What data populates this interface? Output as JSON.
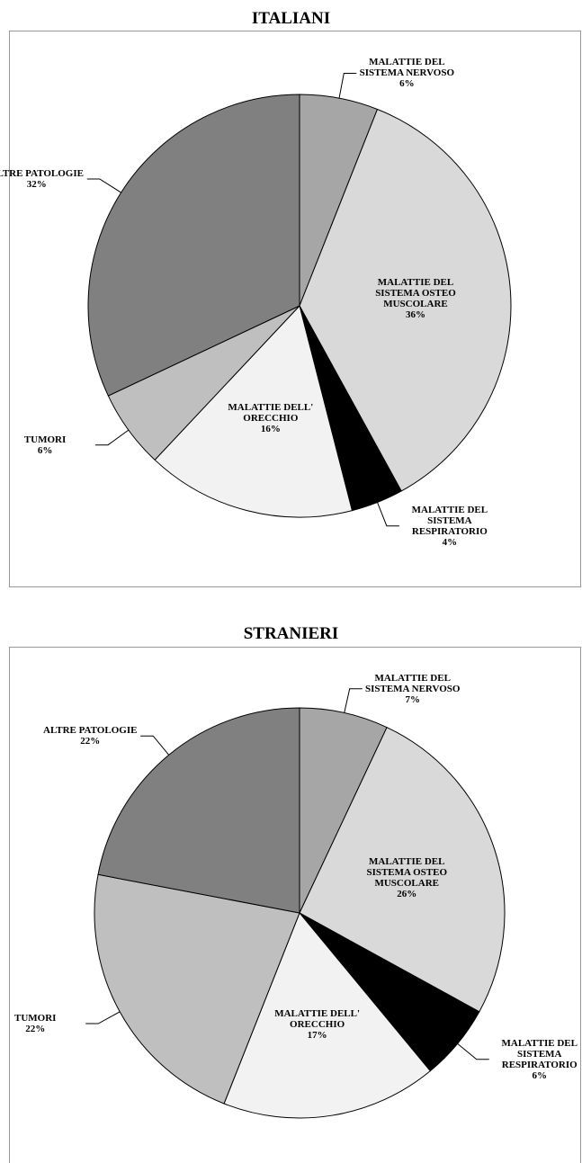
{
  "chart_data": [
    {
      "type": "pie",
      "title": "ITALIANI",
      "categories": [
        "MALATTIE DEL SISTEMA NERVOSO",
        "MALATTIE DEL SISTEMA OSTEO MUSCOLARE",
        "MALATTIE DEL SISTEMA RESPIRATORIO",
        "MALATTIE DELL' ORECCHIO",
        "TUMORI",
        "ALTRE PATOLOGIE"
      ],
      "values": [
        6,
        36,
        4,
        16,
        6,
        32
      ],
      "value_labels": [
        "6%",
        "36%",
        "4%",
        "16%",
        "6%",
        "32%"
      ],
      "colors": [
        "#a6a6a6",
        "#d9d9d9",
        "#000000",
        "#f2f2f2",
        "#bfbfbf",
        "#808080"
      ]
    },
    {
      "type": "pie",
      "title": "STRANIERI",
      "categories": [
        "MALATTIE DEL SISTEMA NERVOSO",
        "MALATTIE DEL SISTEMA OSTEO MUSCOLARE",
        "MALATTIE DEL SISTEMA RESPIRATORIO",
        "MALATTIE DELL' ORECCHIO",
        "TUMORI",
        "ALTRE PATOLOGIE"
      ],
      "values": [
        7,
        26,
        6,
        17,
        22,
        22
      ],
      "value_labels": [
        "7%",
        "26%",
        "6%",
        "17%",
        "22%",
        "22%"
      ],
      "colors": [
        "#a6a6a6",
        "#d9d9d9",
        "#000000",
        "#f2f2f2",
        "#bfbfbf",
        "#808080"
      ]
    }
  ]
}
